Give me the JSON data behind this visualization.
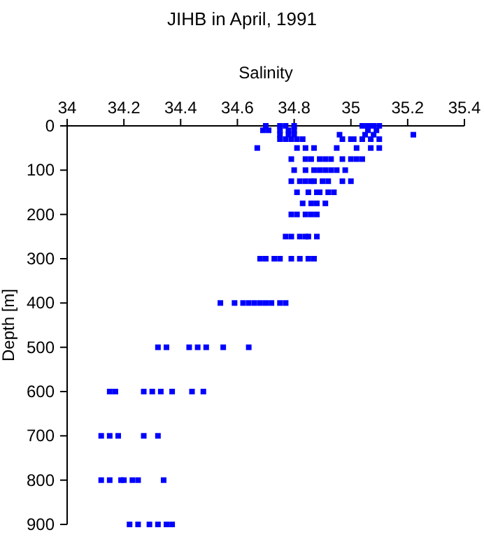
{
  "chart_data": {
    "type": "scatter",
    "title": "JIHB in April, 1991",
    "xlabel": "Salinity",
    "ylabel": "Depth [m]",
    "xlim": [
      34,
      35.4
    ],
    "xticks": [
      34,
      34.2,
      34.4,
      34.6,
      34.8,
      35,
      35.2,
      35.4
    ],
    "ylim": [
      900,
      0
    ],
    "yticks": [
      0,
      100,
      200,
      300,
      400,
      500,
      600,
      700,
      800,
      900
    ],
    "marker": "square",
    "grid": false,
    "series": [
      {
        "color": "#0000ff",
        "x": [
          34.7,
          34.75,
          34.77,
          34.8,
          35.04,
          35.06,
          35.07,
          35.08,
          35.1,
          34.69,
          34.71,
          34.75,
          34.78,
          34.8,
          35.06,
          35.09,
          34.75,
          34.78,
          34.8,
          34.96,
          35.05,
          35.08,
          35.22,
          34.75,
          34.77,
          34.79,
          34.81,
          34.83,
          34.97,
          35.0,
          35.01,
          35.04,
          35.07,
          35.1,
          34.67,
          34.81,
          34.84,
          34.87,
          34.95,
          35.02,
          35.07,
          35.1,
          34.79,
          34.84,
          34.86,
          34.89,
          34.91,
          34.93,
          34.97,
          35.0,
          35.02,
          35.04,
          34.8,
          34.84,
          34.87,
          34.89,
          34.91,
          34.93,
          34.95,
          34.98,
          34.79,
          34.82,
          34.84,
          34.86,
          34.87,
          34.9,
          34.92,
          34.97,
          35.0,
          34.81,
          34.85,
          34.88,
          34.89,
          34.92,
          34.94,
          34.83,
          34.86,
          34.88,
          34.91,
          34.79,
          34.81,
          34.84,
          34.86,
          34.88,
          34.77,
          34.79,
          34.82,
          34.84,
          34.85,
          34.88,
          34.68,
          34.7,
          34.73,
          34.75,
          34.79,
          34.82,
          34.85,
          34.87,
          34.54,
          34.59,
          34.62,
          34.64,
          34.66,
          34.68,
          34.7,
          34.72,
          34.75,
          34.77,
          34.32,
          34.35,
          34.43,
          34.46,
          34.49,
          34.55,
          34.64,
          34.15,
          34.17,
          34.27,
          34.3,
          34.33,
          34.37,
          34.44,
          34.48,
          34.12,
          34.15,
          34.18,
          34.27,
          34.32,
          34.12,
          34.15,
          34.19,
          34.2,
          34.23,
          34.25,
          34.34,
          34.22,
          34.25,
          34.29,
          34.32,
          34.35,
          34.37
        ],
        "values": [
          0,
          0,
          0,
          0,
          0,
          0,
          0,
          0,
          0,
          10,
          10,
          10,
          10,
          10,
          10,
          10,
          20,
          20,
          20,
          20,
          20,
          20,
          20,
          30,
          30,
          30,
          30,
          30,
          30,
          30,
          30,
          30,
          30,
          30,
          50,
          50,
          50,
          50,
          50,
          50,
          50,
          50,
          75,
          75,
          75,
          75,
          75,
          75,
          75,
          75,
          75,
          75,
          100,
          100,
          100,
          100,
          100,
          100,
          100,
          100,
          125,
          125,
          125,
          125,
          125,
          125,
          125,
          125,
          125,
          150,
          150,
          150,
          150,
          150,
          150,
          175,
          175,
          175,
          175,
          200,
          200,
          200,
          200,
          200,
          250,
          250,
          250,
          250,
          250,
          250,
          300,
          300,
          300,
          300,
          300,
          300,
          300,
          300,
          400,
          400,
          400,
          400,
          400,
          400,
          400,
          400,
          400,
          400,
          500,
          500,
          500,
          500,
          500,
          500,
          500,
          600,
          600,
          600,
          600,
          600,
          600,
          600,
          600,
          700,
          700,
          700,
          700,
          700,
          800,
          800,
          800,
          800,
          800,
          800,
          800,
          900,
          900,
          900,
          900,
          900,
          900
        ]
      }
    ]
  }
}
